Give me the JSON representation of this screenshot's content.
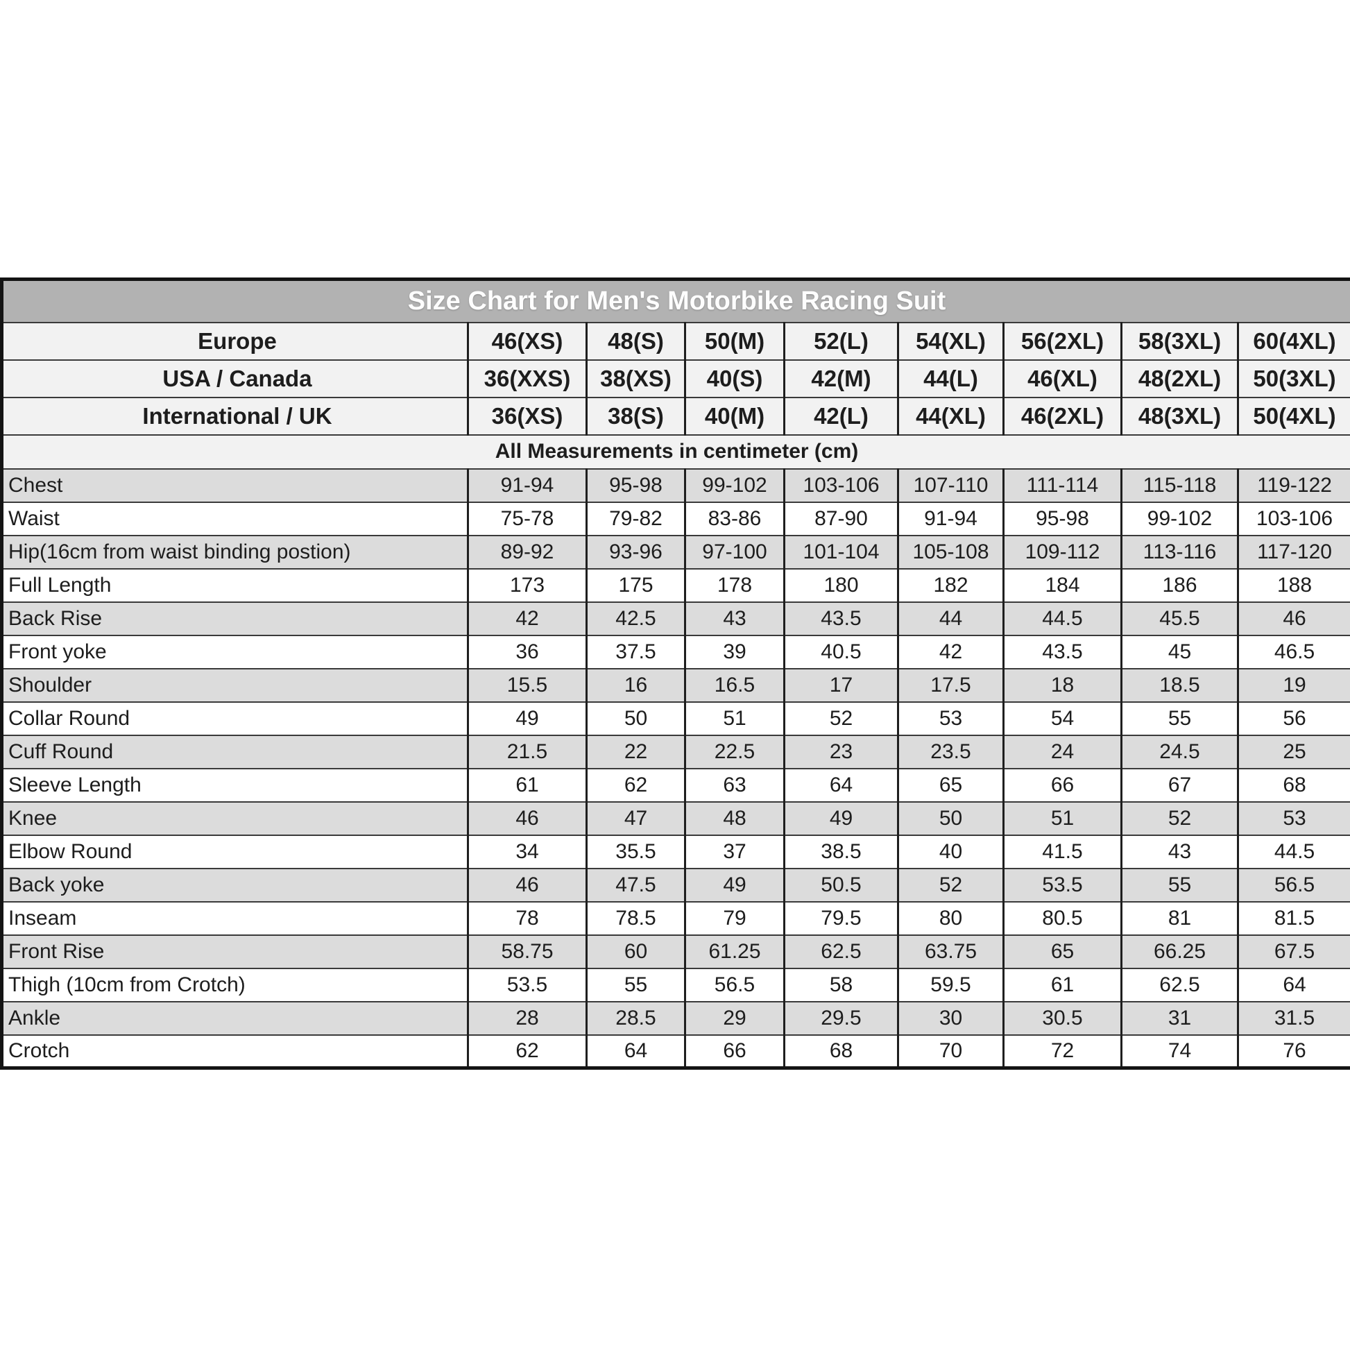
{
  "chart_data": {
    "type": "table",
    "title": "Size Chart for Men's Motorbike Racing Suit",
    "note": "All Measurements in centimeter (cm)",
    "size_systems": [
      {
        "label": "Europe",
        "values": [
          "46(XS)",
          "48(S)",
          "50(M)",
          "52(L)",
          "54(XL)",
          "56(2XL)",
          "58(3XL)",
          "60(4XL)"
        ]
      },
      {
        "label": "USA / Canada",
        "values": [
          "36(XXS)",
          "38(XS)",
          "40(S)",
          "42(M)",
          "44(L)",
          "46(XL)",
          "48(2XL)",
          "50(3XL)"
        ]
      },
      {
        "label": "International / UK",
        "values": [
          "36(XS)",
          "38(S)",
          "40(M)",
          "42(L)",
          "44(XL)",
          "46(2XL)",
          "48(3XL)",
          "50(4XL)"
        ]
      }
    ],
    "rows": [
      {
        "label": "Chest",
        "values": [
          "91-94",
          "95-98",
          "99-102",
          "103-106",
          "107-110",
          "111-114",
          "115-118",
          "119-122"
        ]
      },
      {
        "label": "Waist",
        "values": [
          "75-78",
          "79-82",
          "83-86",
          "87-90",
          "91-94",
          "95-98",
          "99-102",
          "103-106"
        ]
      },
      {
        "label": "Hip(16cm from waist binding postion)",
        "values": [
          "89-92",
          "93-96",
          "97-100",
          "101-104",
          "105-108",
          "109-112",
          "113-116",
          "117-120"
        ]
      },
      {
        "label": "Full Length",
        "values": [
          "173",
          "175",
          "178",
          "180",
          "182",
          "184",
          "186",
          "188"
        ]
      },
      {
        "label": "Back Rise",
        "values": [
          "42",
          "42.5",
          "43",
          "43.5",
          "44",
          "44.5",
          "45.5",
          "46"
        ]
      },
      {
        "label": "Front yoke",
        "values": [
          "36",
          "37.5",
          "39",
          "40.5",
          "42",
          "43.5",
          "45",
          "46.5"
        ]
      },
      {
        "label": "Shoulder",
        "values": [
          "15.5",
          "16",
          "16.5",
          "17",
          "17.5",
          "18",
          "18.5",
          "19"
        ]
      },
      {
        "label": "Collar Round",
        "values": [
          "49",
          "50",
          "51",
          "52",
          "53",
          "54",
          "55",
          "56"
        ]
      },
      {
        "label": "Cuff Round",
        "values": [
          "21.5",
          "22",
          "22.5",
          "23",
          "23.5",
          "24",
          "24.5",
          "25"
        ]
      },
      {
        "label": "Sleeve Length",
        "values": [
          "61",
          "62",
          "63",
          "64",
          "65",
          "66",
          "67",
          "68"
        ]
      },
      {
        "label": "Knee",
        "values": [
          "46",
          "47",
          "48",
          "49",
          "50",
          "51",
          "52",
          "53"
        ]
      },
      {
        "label": "Elbow Round",
        "values": [
          "34",
          "35.5",
          "37",
          "38.5",
          "40",
          "41.5",
          "43",
          "44.5"
        ]
      },
      {
        "label": "Back yoke",
        "values": [
          "46",
          "47.5",
          "49",
          "50.5",
          "52",
          "53.5",
          "55",
          "56.5"
        ]
      },
      {
        "label": "Inseam",
        "values": [
          "78",
          "78.5",
          "79",
          "79.5",
          "80",
          "80.5",
          "81",
          "81.5"
        ]
      },
      {
        "label": "Front Rise",
        "values": [
          "58.75",
          "60",
          "61.25",
          "62.5",
          "63.75",
          "65",
          "66.25",
          "67.5"
        ]
      },
      {
        "label": "Thigh (10cm from Crotch)",
        "values": [
          "53.5",
          "55",
          "56.5",
          "58",
          "59.5",
          "61",
          "62.5",
          "64"
        ]
      },
      {
        "label": "Ankle",
        "values": [
          "28",
          "28.5",
          "29",
          "29.5",
          "30",
          "30.5",
          "31",
          "31.5"
        ]
      },
      {
        "label": "Crotch",
        "values": [
          "62",
          "64",
          "66",
          "68",
          "70",
          "72",
          "74",
          "76"
        ]
      }
    ],
    "layout_hints": {
      "grid": true,
      "striped_rows": true,
      "first_column": "measurement labels",
      "columns_after_label": 8
    },
    "colors": {
      "title_bg": "#b2b2b2",
      "title_text": "#fdfdfd",
      "header_bg": "#f2f2f2",
      "stripe_gray": "#dcdcdc",
      "stripe_white": "#ffffff",
      "border": "#1f1f1f",
      "text": "#1d1d1d"
    }
  }
}
